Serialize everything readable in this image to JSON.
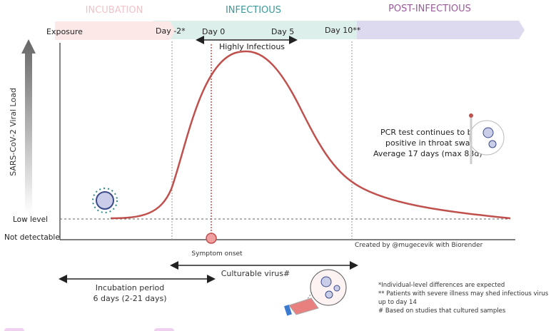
{
  "phases": {
    "incubation": "INCUBATION",
    "infectious": "INFECTIOUS",
    "post_infectious": "POST-INFECTIOUS"
  },
  "timeline": {
    "exposure": "Exposure",
    "day_minus2": "Day -2*",
    "day0": "Day 0",
    "day5": "Day 5",
    "day10": "Day 10**"
  },
  "highly_infectious": "Highly Infectious",
  "y_axis_label": "SARS-CoV-2 Viral Load",
  "low_level": "Low level",
  "not_detectable": "Not detectable",
  "symptom_onset": "Symptom onset",
  "pcr_note": [
    "PCR test continues to be",
    "positive in throat swabs",
    "Average 17 days (max 83d)"
  ],
  "credit": "Created by @mugecevik with Biorender",
  "culturable_virus": "Culturable virus#",
  "incubation_period": [
    "Incubation period",
    "6 days (2-21 days)"
  ],
  "footnotes": [
    "*Individual-level differences are expected",
    "** Patients with severe illness may shed infectious virus",
    "up to day 14",
    "# Based on studies that cultured samples"
  ],
  "colors": {
    "incubation": "#f0c4c8",
    "infectious": "#3a9a9a",
    "post_infectious": "#9a5a9a",
    "curve": "#c0504d"
  }
}
